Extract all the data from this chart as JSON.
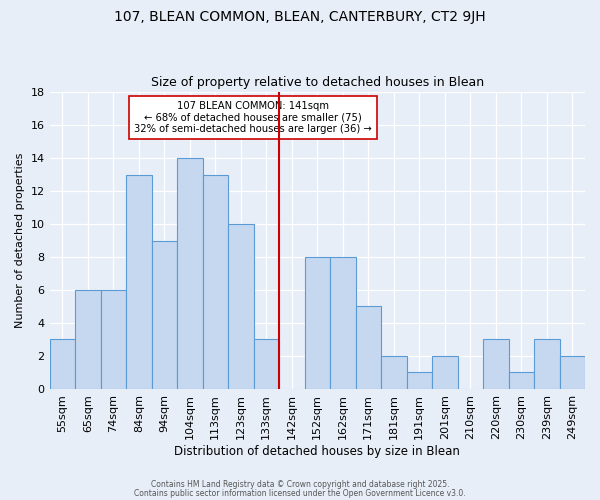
{
  "title": "107, BLEAN COMMON, BLEAN, CANTERBURY, CT2 9JH",
  "subtitle": "Size of property relative to detached houses in Blean",
  "xlabel": "Distribution of detached houses by size in Blean",
  "ylabel": "Number of detached properties",
  "categories": [
    "55sqm",
    "65sqm",
    "74sqm",
    "84sqm",
    "94sqm",
    "104sqm",
    "113sqm",
    "123sqm",
    "133sqm",
    "142sqm",
    "152sqm",
    "162sqm",
    "171sqm",
    "181sqm",
    "191sqm",
    "201sqm",
    "210sqm",
    "220sqm",
    "230sqm",
    "239sqm",
    "249sqm"
  ],
  "values": [
    3,
    6,
    6,
    13,
    9,
    14,
    13,
    10,
    3,
    0,
    8,
    8,
    5,
    2,
    1,
    2,
    0,
    3,
    1,
    3,
    2
  ],
  "bar_color": "#c5d8f0",
  "bar_edge_color": "#5b9bd5",
  "annotation_title": "107 BLEAN COMMON: 141sqm",
  "annotation_line1": "← 68% of detached houses are smaller (75)",
  "annotation_line2": "32% of semi-detached houses are larger (36) →",
  "annotation_box_edge": "#cc0000",
  "reference_line_color": "#cc0000",
  "ylim": [
    0,
    18
  ],
  "yticks": [
    0,
    2,
    4,
    6,
    8,
    10,
    12,
    14,
    16,
    18
  ],
  "background_color": "#e8eef8",
  "footer1": "Contains HM Land Registry data © Crown copyright and database right 2025.",
  "footer2": "Contains public sector information licensed under the Open Government Licence v3.0.",
  "title_fontsize": 10,
  "subtitle_fontsize": 9
}
